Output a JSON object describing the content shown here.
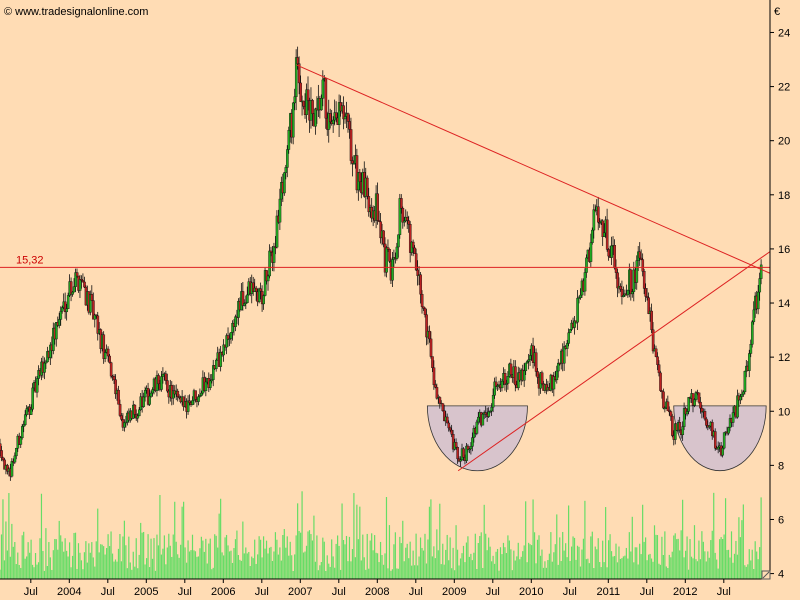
{
  "watermark": "© www.tradesignalonline.com",
  "currency": "€",
  "colors": {
    "background": "#ffdcb4",
    "up": "#22aa22",
    "down": "#bb2222",
    "trendline": "#dd2222",
    "volume": "#66dd66",
    "bowl_fill": "#d8c4cc"
  },
  "chart_data": {
    "type": "candlestick",
    "title": "",
    "x_range": [
      2003.1,
      2013.1
    ],
    "ylim": [
      3.8,
      25.2
    ],
    "y_ticks": [
      4,
      6,
      8,
      10,
      12,
      14,
      16,
      18,
      20,
      22,
      24
    ],
    "x_ticks": [
      {
        "label": "Jul",
        "x": 2003.5
      },
      {
        "label": "2004",
        "x": 2004.0
      },
      {
        "label": "Jul",
        "x": 2004.5
      },
      {
        "label": "2005",
        "x": 2005.0
      },
      {
        "label": "Jul",
        "x": 2005.5
      },
      {
        "label": "2006",
        "x": 2006.0
      },
      {
        "label": "Jul",
        "x": 2006.5
      },
      {
        "label": "2007",
        "x": 2007.0
      },
      {
        "label": "Jul",
        "x": 2007.5
      },
      {
        "label": "2008",
        "x": 2008.0
      },
      {
        "label": "Jul",
        "x": 2008.5
      },
      {
        "label": "2009",
        "x": 2009.0
      },
      {
        "label": "Jul",
        "x": 2009.5
      },
      {
        "label": "2010",
        "x": 2010.0
      },
      {
        "label": "Jul",
        "x": 2010.5
      },
      {
        "label": "2011",
        "x": 2011.0
      },
      {
        "label": "Jul",
        "x": 2011.5
      },
      {
        "label": "2012",
        "x": 2012.0
      },
      {
        "label": "Jul",
        "x": 2012.5
      }
    ],
    "horizontal_line": {
      "value": 15.32,
      "label": "15,32"
    },
    "trendlines": [
      {
        "name": "resistance",
        "from": [
          2006.95,
          22.8
        ],
        "to": [
          2013.1,
          15.1
        ]
      },
      {
        "name": "support",
        "from": [
          2009.05,
          7.8
        ],
        "to": [
          2013.1,
          15.9
        ]
      }
    ],
    "bowls": [
      {
        "x_from": 2008.65,
        "x_to": 2009.95,
        "top": 10.2,
        "bottom": 7.8
      },
      {
        "x_from": 2011.85,
        "x_to": 2013.05,
        "top": 10.2,
        "bottom": 7.8
      }
    ],
    "close_path": [
      [
        2003.1,
        8.8
      ],
      [
        2003.2,
        7.5
      ],
      [
        2003.4,
        9.5
      ],
      [
        2003.6,
        11.2
      ],
      [
        2003.8,
        12.8
      ],
      [
        2004.0,
        14.6
      ],
      [
        2004.15,
        15.0
      ],
      [
        2004.3,
        13.6
      ],
      [
        2004.45,
        12.2
      ],
      [
        2004.6,
        11.0
      ],
      [
        2004.7,
        9.4
      ],
      [
        2004.8,
        9.8
      ],
      [
        2005.0,
        10.5
      ],
      [
        2005.2,
        11.2
      ],
      [
        2005.3,
        10.8
      ],
      [
        2005.45,
        10.2
      ],
      [
        2005.6,
        10.5
      ],
      [
        2005.8,
        11.2
      ],
      [
        2006.0,
        12.2
      ],
      [
        2006.2,
        13.8
      ],
      [
        2006.35,
        14.5
      ],
      [
        2006.5,
        14.2
      ],
      [
        2006.65,
        16.0
      ],
      [
        2006.8,
        19.0
      ],
      [
        2006.9,
        21.0
      ],
      [
        2006.95,
        22.5
      ],
      [
        2007.05,
        21.5
      ],
      [
        2007.2,
        20.5
      ],
      [
        2007.3,
        21.8
      ],
      [
        2007.4,
        20.0
      ],
      [
        2007.5,
        21.0
      ],
      [
        2007.6,
        20.5
      ],
      [
        2007.7,
        19.0
      ],
      [
        2007.85,
        18.0
      ],
      [
        2008.0,
        17.5
      ],
      [
        2008.1,
        15.6
      ],
      [
        2008.2,
        15.2
      ],
      [
        2008.3,
        17.8
      ],
      [
        2008.45,
        16.0
      ],
      [
        2008.55,
        14.5
      ],
      [
        2008.65,
        13.0
      ],
      [
        2008.75,
        11.0
      ],
      [
        2008.85,
        9.8
      ],
      [
        2008.95,
        9.0
      ],
      [
        2009.05,
        8.2
      ],
      [
        2009.15,
        8.5
      ],
      [
        2009.3,
        9.5
      ],
      [
        2009.45,
        10.2
      ],
      [
        2009.55,
        11.0
      ],
      [
        2009.7,
        11.5
      ],
      [
        2009.85,
        11.0
      ],
      [
        2010.0,
        12.2
      ],
      [
        2010.1,
        11.2
      ],
      [
        2010.2,
        10.6
      ],
      [
        2010.35,
        11.8
      ],
      [
        2010.5,
        12.8
      ],
      [
        2010.65,
        14.2
      ],
      [
        2010.75,
        16.0
      ],
      [
        2010.85,
        17.5
      ],
      [
        2010.95,
        16.8
      ],
      [
        2011.05,
        15.8
      ],
      [
        2011.15,
        14.6
      ],
      [
        2011.3,
        14.8
      ],
      [
        2011.4,
        15.6
      ],
      [
        2011.5,
        14.2
      ],
      [
        2011.6,
        12.0
      ],
      [
        2011.7,
        10.6
      ],
      [
        2011.85,
        9.2
      ],
      [
        2011.95,
        9.4
      ],
      [
        2012.05,
        10.6
      ],
      [
        2012.15,
        10.4
      ],
      [
        2012.25,
        9.8
      ],
      [
        2012.35,
        9.2
      ],
      [
        2012.45,
        8.4
      ],
      [
        2012.55,
        9.4
      ],
      [
        2012.7,
        10.4
      ],
      [
        2012.8,
        11.6
      ],
      [
        2012.9,
        13.8
      ],
      [
        2013.0,
        15.2
      ]
    ]
  }
}
